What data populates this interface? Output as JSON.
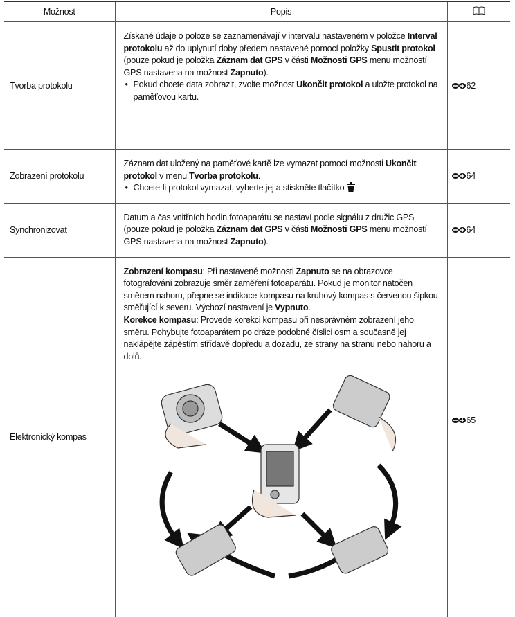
{
  "table": {
    "header": [
      "Možnost",
      "Popis"
    ],
    "rows": [
      {
        "option": "Tvorba protokolu",
        "description": [
          [
            "Získané údaje o poloze se zaznamenávají v intervalu nastaveném v položce ",
            "Interval protokolu",
            " až do uplynutí doby předem nastavené pomocí položky ",
            "Spustit protokol",
            " (pouze pokud je položka ",
            "Záznam dat GPS",
            " v části ",
            "Možnosti GPS",
            " menu možností GPS nastavena na možnost ",
            "Zapnuto",
            ")."
          ],
          [
            "Pokud chcete data zobrazit, zvolte možnost ",
            "Ukončit protokol",
            " a uložte protokol na paměťovou kartu."
          ]
        ],
        "ref": "62"
      },
      {
        "option": "Zobrazení protokolu",
        "description": [
          [
            "Záznam dat uložený na paměťové kartě lze vymazat pomocí možnosti ",
            "Ukončit protokol",
            " v menu ",
            "Tvorba protokolu",
            "."
          ],
          [
            "Chcete-li protokol vymazat, vyberte jej a stiskněte tlačítko",
            "."
          ]
        ],
        "ref": "64"
      },
      {
        "option": "Synchronizovat",
        "description": [
          [
            "Datum a čas vnitřních hodin fotoaparátu se nastaví podle signálu z družic GPS (pouze pokud je položka ",
            "Záznam dat GPS",
            " v části ",
            "Možnosti GPS",
            " menu možností GPS nastavena na možnost ",
            "Zapnuto",
            ")."
          ]
        ],
        "ref": "64"
      },
      {
        "option": "Elektronický kompas",
        "description": [
          [
            "Zobrazení kompasu",
            ": Při nastavené možnosti ",
            "Zapnuto",
            " se na obrazovce fotografování zobrazuje směr zaměření fotoaparátu. Pokud je monitor natočen směrem nahoru, přepne se indikace kompasu na kruhový kompas s červenou šipkou směřující k severu. Výchozí nastavení je ",
            "Vypnuto",
            "."
          ],
          [
            "Korekce kompasu",
            ": Provede korekci kompasu při nesprávném zobrazení jeho směru. Pohybujte fotoaparátem po dráze podobné číslici osm a současně jej naklápějte zápěstím střídavě dopředu a dozadu, ze strany na stranu nebo nahoru a dolů."
          ]
        ],
        "ref": "65"
      }
    ]
  }
}
